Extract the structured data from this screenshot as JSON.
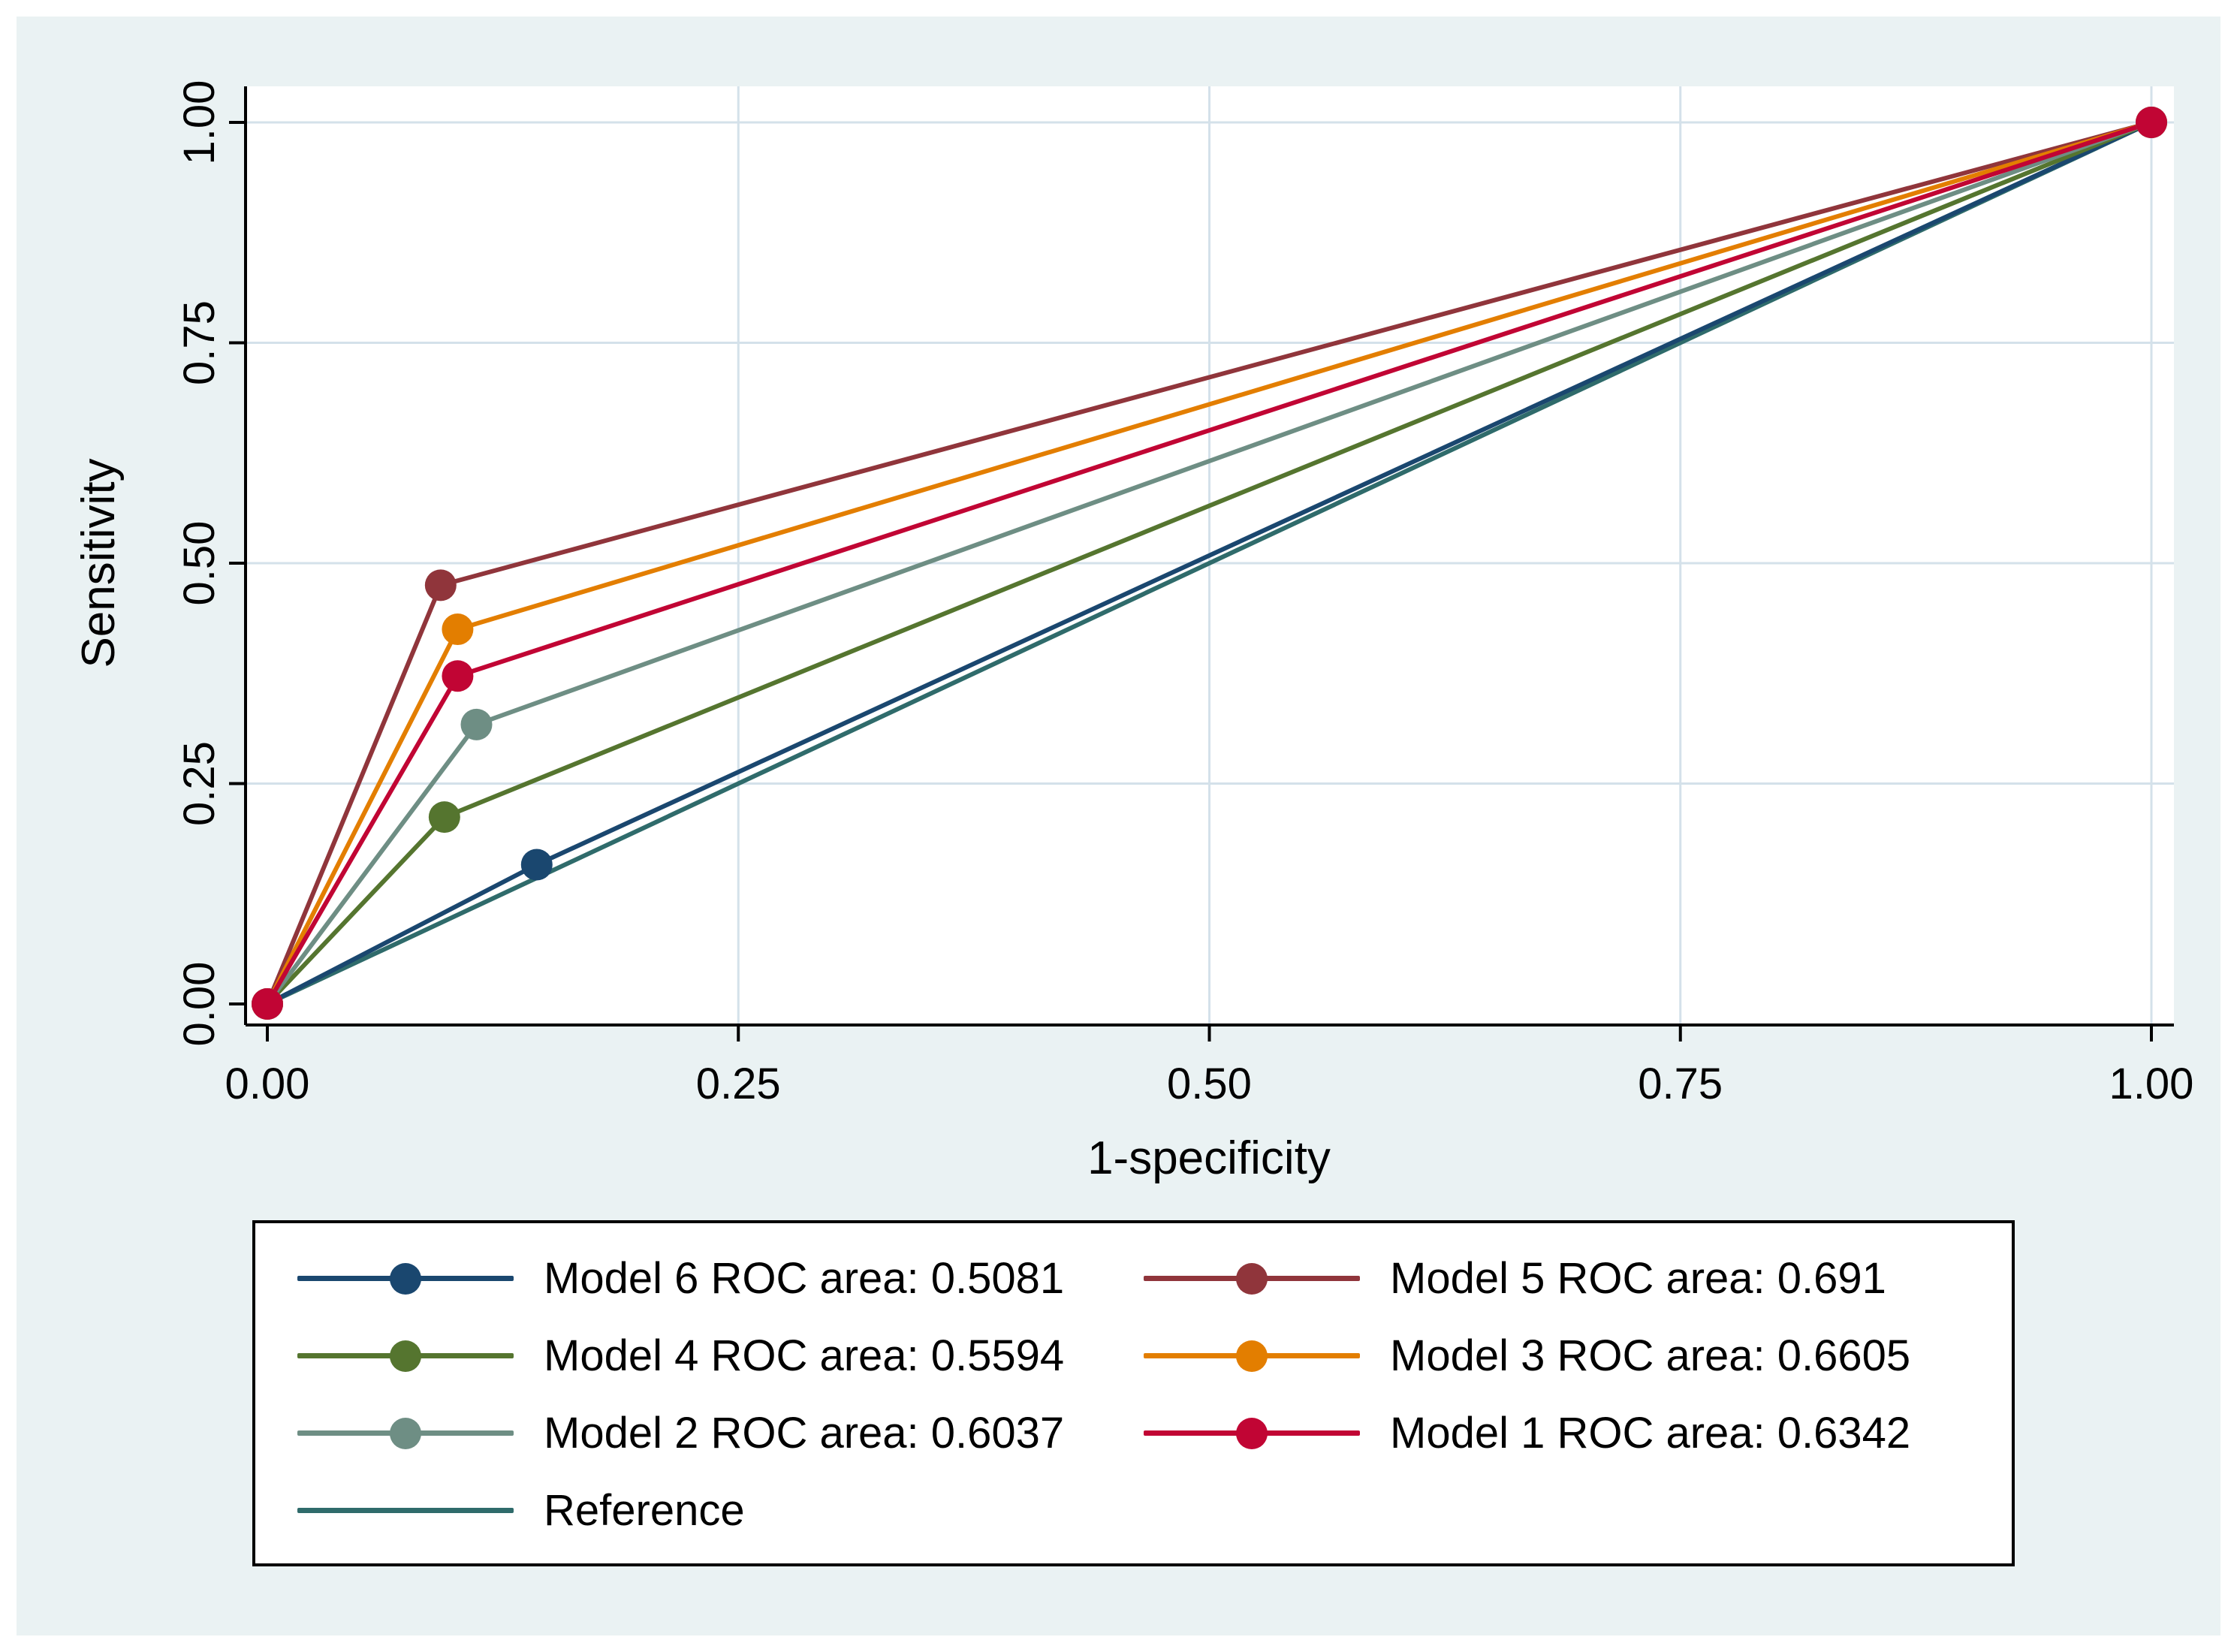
{
  "colors": {
    "page_background": "#eaf2f3",
    "plot_background": "#ffffff",
    "axis": "#000000",
    "legend_border": "#000000"
  },
  "chart_data": {
    "type": "line",
    "title": "",
    "xlabel": "1-specificity",
    "ylabel": "Sensitivity",
    "xlim": [
      0,
      1
    ],
    "ylim": [
      0,
      1
    ],
    "xticks": [
      0,
      0.25,
      0.5,
      0.75,
      1
    ],
    "yticks": [
      0,
      0.25,
      0.5,
      0.75,
      1
    ],
    "xtick_labels": [
      "0.00",
      "0.25",
      "0.50",
      "0.75",
      "1.00"
    ],
    "ytick_labels": [
      "0.00",
      "0.25",
      "0.50",
      "0.75",
      "1.00"
    ],
    "grid": true,
    "grid_color": "#d4e1ea",
    "legend_position": "bottom",
    "series": [
      {
        "name": "Model 6",
        "label": "Model 6 ROC area: 0.5081",
        "roc_area": 0.5081,
        "color": "#1a476f",
        "marker": true,
        "points": [
          [
            0,
            0
          ],
          [
            0.143,
            0.158
          ],
          [
            1,
            1
          ]
        ]
      },
      {
        "name": "Model 5",
        "label": "Model 5 ROC area: 0.691",
        "roc_area": 0.691,
        "color": "#90353b",
        "marker": true,
        "points": [
          [
            0,
            0
          ],
          [
            0.092,
            0.475
          ],
          [
            1,
            1
          ]
        ]
      },
      {
        "name": "Model 4",
        "label": "Model 4 ROC area: 0.5594",
        "roc_area": 0.5594,
        "color": "#55752f",
        "marker": true,
        "points": [
          [
            0,
            0
          ],
          [
            0.094,
            0.212
          ],
          [
            1,
            1
          ]
        ]
      },
      {
        "name": "Model 3",
        "label": "Model 3 ROC area: 0.6605",
        "roc_area": 0.6605,
        "color": "#e37e00",
        "marker": true,
        "points": [
          [
            0,
            0
          ],
          [
            0.101,
            0.425
          ],
          [
            1,
            1
          ]
        ]
      },
      {
        "name": "Model 2",
        "label": "Model 2 ROC area: 0.6037",
        "roc_area": 0.6037,
        "color": "#6e8e84",
        "marker": true,
        "points": [
          [
            0,
            0
          ],
          [
            0.111,
            0.317
          ],
          [
            1,
            1
          ]
        ]
      },
      {
        "name": "Model 1",
        "label": "Model 1 ROC area: 0.6342",
        "roc_area": 0.6342,
        "color": "#c10534",
        "marker": true,
        "points": [
          [
            0,
            0
          ],
          [
            0.101,
            0.372
          ],
          [
            1,
            1
          ]
        ]
      },
      {
        "name": "Reference",
        "label": "Reference",
        "color": "#2f6b6b",
        "marker": false,
        "points": [
          [
            0,
            0
          ],
          [
            1,
            1
          ]
        ]
      }
    ]
  }
}
